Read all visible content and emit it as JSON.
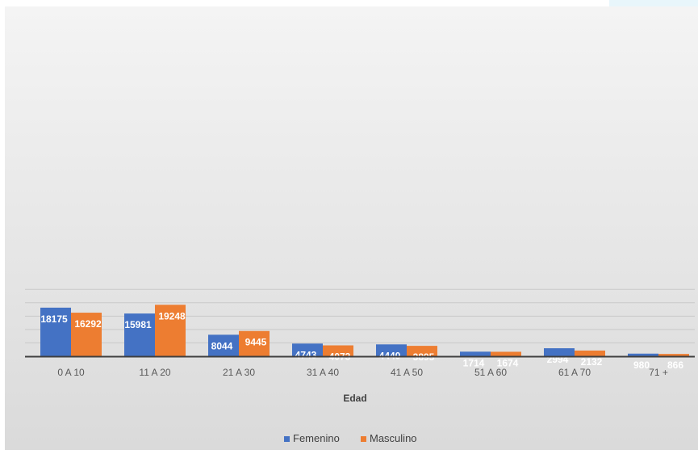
{
  "chart_data": {
    "type": "bar",
    "title": "",
    "xlabel": "Edad",
    "ylabel": "",
    "ylim": [
      0,
      25000
    ],
    "grid": true,
    "legend": "bottom",
    "categories": [
      "0 A 10",
      "11 A 20",
      "21 A 30",
      "31 A 40",
      "41 A 50",
      "51 A 60",
      "61 A 70",
      "71 +"
    ],
    "series": [
      {
        "name": "Femenino",
        "color": "#4472c4",
        "values": [
          18175,
          15981,
          8044,
          4743,
          4440,
          1714,
          2994,
          980
        ]
      },
      {
        "name": "Masculino",
        "color": "#ed7d31",
        "values": [
          16292,
          19248,
          9445,
          4073,
          3895,
          1674,
          2132,
          866
        ]
      }
    ]
  }
}
